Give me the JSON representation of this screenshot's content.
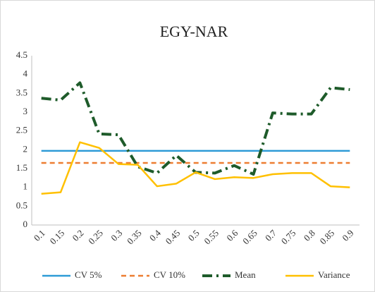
{
  "chart_data": {
    "type": "line",
    "title": "EGY-NAR",
    "categories": [
      "0.1",
      "0.15",
      "0.2",
      "0.25",
      "0.3",
      "0.35",
      "0.4",
      "0.45",
      "0.5",
      "0.55",
      "0.6",
      "0.65",
      "0.7",
      "0.75",
      "0.8",
      "0.85",
      "0.9"
    ],
    "series": [
      {
        "name": "CV 5%",
        "color": "#2e9bd6",
        "style": "solid",
        "values": [
          1.97,
          1.97,
          1.97,
          1.97,
          1.97,
          1.97,
          1.97,
          1.97,
          1.97,
          1.97,
          1.97,
          1.97,
          1.97,
          1.97,
          1.97,
          1.97,
          1.97
        ]
      },
      {
        "name": "CV 10%",
        "color": "#ed7d31",
        "style": "dashed",
        "values": [
          1.65,
          1.65,
          1.65,
          1.65,
          1.65,
          1.65,
          1.65,
          1.65,
          1.65,
          1.65,
          1.65,
          1.65,
          1.65,
          1.65,
          1.65,
          1.65,
          1.65
        ]
      },
      {
        "name": "Mean",
        "color": "#1e5b2a",
        "style": "dashdot",
        "values": [
          3.37,
          3.32,
          3.78,
          2.42,
          2.4,
          1.55,
          1.38,
          1.85,
          1.4,
          1.38,
          1.58,
          1.35,
          2.98,
          2.95,
          2.95,
          3.65,
          3.6
        ]
      },
      {
        "name": "Variance",
        "color": "#ffc000",
        "style": "solid",
        "values": [
          0.83,
          0.87,
          2.2,
          2.05,
          1.62,
          1.6,
          1.03,
          1.1,
          1.4,
          1.22,
          1.27,
          1.25,
          1.35,
          1.38,
          1.38,
          1.03,
          1.0
        ]
      }
    ],
    "ylim": [
      0,
      4.5
    ],
    "yticks": [
      0,
      0.5,
      1,
      1.5,
      2,
      2.5,
      3,
      3.5,
      4,
      4.5
    ],
    "grid": false,
    "legend": "bottom"
  }
}
